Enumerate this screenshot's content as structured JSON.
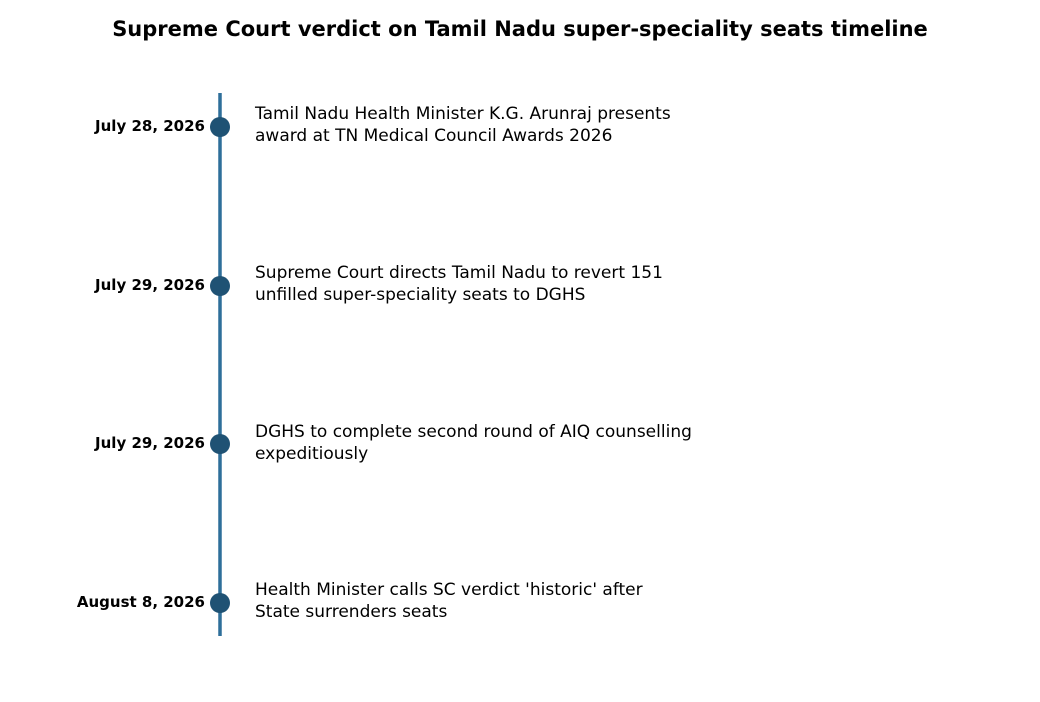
{
  "title": "Supreme Court verdict on Tamil Nadu super-speciality seats timeline",
  "colors": {
    "line": "#2e6f9a",
    "marker": "#1f5274"
  },
  "events": [
    {
      "date": "July 28, 2026",
      "text_line1": "Tamil Nadu Health Minister K.G. Arunraj presents",
      "text_line2": "award at TN Medical Council Awards 2026"
    },
    {
      "date": "July 29, 2026",
      "text_line1": "Supreme Court directs Tamil Nadu to revert 151",
      "text_line2": "unfilled super-speciality seats to DGHS"
    },
    {
      "date": "July 29, 2026",
      "text_line1": "DGHS to complete second round of AIQ counselling",
      "text_line2": "expeditiously"
    },
    {
      "date": "August 8, 2026",
      "text_line1": "Health Minister calls SC verdict 'historic' after",
      "text_line2": "State surrenders seats"
    }
  ]
}
